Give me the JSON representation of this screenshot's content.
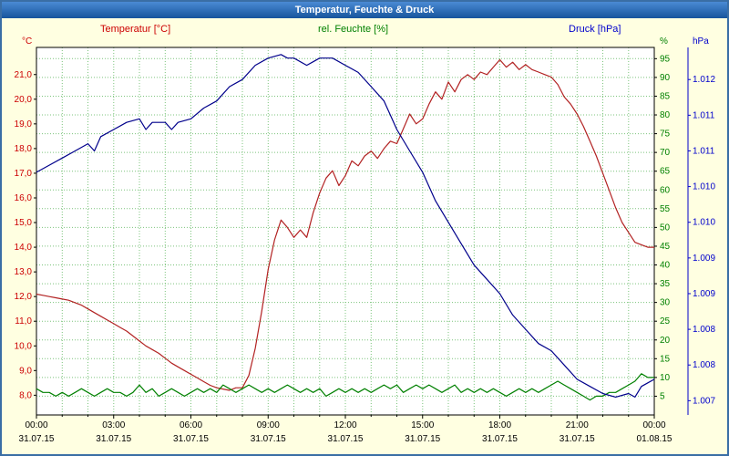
{
  "window": {
    "title": "Temperatur, Feuchte & Druck"
  },
  "colors": {
    "page_bg": "#ffffe1",
    "plot_bg": "#ffffff",
    "frame": "#3a6ea5",
    "title_bar_top": "#4a8ad4",
    "title_bar_bottom": "#17549c",
    "grid": "#7cc47c",
    "temp": "#cc0000",
    "temp_line": "#b22222",
    "hum": "#008000",
    "pres": "#0000cc",
    "pres_line": "#00008b"
  },
  "chart_data": {
    "type": "line",
    "title": "Temperatur, Feuchte & Druck",
    "grid": true,
    "legend_position": "top",
    "x_axis": {
      "min": 0,
      "max": 24,
      "grid_step": 1,
      "tick_step": 3,
      "tick_labels": [
        "00:00",
        "03:00",
        "06:00",
        "09:00",
        "12:00",
        "15:00",
        "18:00",
        "21:00",
        "00:00"
      ],
      "date_labels": [
        "31.07.15",
        "31.07.15",
        "31.07.15",
        "31.07.15",
        "31.07.15",
        "31.07.15",
        "31.07.15",
        "31.07.15",
        "01.08.15"
      ]
    },
    "axes": {
      "temp": {
        "label": "Temperatur [°C]",
        "unit": "°C",
        "side": "left",
        "min": 7.2,
        "max": 22.1,
        "ticks": [
          8,
          9,
          10,
          11,
          12,
          13,
          14,
          15,
          16,
          17,
          18,
          19,
          20,
          21
        ],
        "tick_labels": [
          "8,0",
          "9,0",
          "10,0",
          "11,0",
          "12,0",
          "13,0",
          "14,0",
          "15,0",
          "16,0",
          "17,0",
          "18,0",
          "19,0",
          "20,0",
          "21,0"
        ]
      },
      "hum": {
        "label": "rel. Feuchte [%]",
        "unit": "%",
        "side": "right",
        "min": 0,
        "max": 98,
        "ticks": [
          5,
          10,
          15,
          20,
          25,
          30,
          35,
          40,
          45,
          50,
          55,
          60,
          65,
          70,
          75,
          80,
          85,
          90,
          95
        ],
        "tick_labels": [
          "5",
          "10",
          "15",
          "20",
          "25",
          "30",
          "35",
          "40",
          "45",
          "50",
          "55",
          "60",
          "65",
          "70",
          "75",
          "80",
          "85",
          "90",
          "95"
        ]
      },
      "pres": {
        "label": "Druck [hPa]",
        "unit": "hPa",
        "side": "right2",
        "min": 1.0073,
        "max": 1.01245,
        "ticks": [
          1.0075,
          1.008,
          1.0085,
          1.009,
          1.0095,
          1.01,
          1.0105,
          1.011,
          1.0115,
          1.012
        ],
        "tick_labels": [
          "1.007",
          "1.008",
          "1.008",
          "1.009",
          "1.009",
          "1.010",
          "1.010",
          "1.011",
          "1.011",
          "1.012"
        ]
      }
    },
    "series": [
      {
        "name": "Temperatur",
        "axis": "temp",
        "color": "#b22222",
        "points": [
          [
            0,
            12.1
          ],
          [
            0.25,
            12.05
          ],
          [
            0.5,
            12.0
          ],
          [
            0.75,
            11.95
          ],
          [
            1,
            11.9
          ],
          [
            1.25,
            11.85
          ],
          [
            1.5,
            11.75
          ],
          [
            1.75,
            11.65
          ],
          [
            2,
            11.5
          ],
          [
            2.25,
            11.35
          ],
          [
            2.5,
            11.2
          ],
          [
            2.75,
            11.05
          ],
          [
            3,
            10.9
          ],
          [
            3.25,
            10.75
          ],
          [
            3.5,
            10.6
          ],
          [
            3.75,
            10.4
          ],
          [
            4,
            10.2
          ],
          [
            4.25,
            10.0
          ],
          [
            4.5,
            9.85
          ],
          [
            4.75,
            9.7
          ],
          [
            5,
            9.5
          ],
          [
            5.25,
            9.3
          ],
          [
            5.5,
            9.15
          ],
          [
            5.75,
            9.0
          ],
          [
            6,
            8.85
          ],
          [
            6.25,
            8.7
          ],
          [
            6.5,
            8.55
          ],
          [
            6.75,
            8.4
          ],
          [
            7,
            8.3
          ],
          [
            7.25,
            8.25
          ],
          [
            7.5,
            8.2
          ],
          [
            7.75,
            8.3
          ],
          [
            8,
            8.3
          ],
          [
            8.25,
            8.8
          ],
          [
            8.5,
            9.9
          ],
          [
            8.75,
            11.4
          ],
          [
            9,
            13.1
          ],
          [
            9.25,
            14.3
          ],
          [
            9.5,
            15.1
          ],
          [
            9.75,
            14.8
          ],
          [
            10,
            14.4
          ],
          [
            10.25,
            14.7
          ],
          [
            10.5,
            14.4
          ],
          [
            10.75,
            15.4
          ],
          [
            11,
            16.2
          ],
          [
            11.25,
            16.8
          ],
          [
            11.5,
            17.1
          ],
          [
            11.75,
            16.5
          ],
          [
            12,
            16.9
          ],
          [
            12.25,
            17.5
          ],
          [
            12.5,
            17.3
          ],
          [
            12.75,
            17.7
          ],
          [
            13,
            17.9
          ],
          [
            13.25,
            17.6
          ],
          [
            13.5,
            18.0
          ],
          [
            13.75,
            18.3
          ],
          [
            14,
            18.2
          ],
          [
            14.25,
            18.8
          ],
          [
            14.5,
            19.4
          ],
          [
            14.75,
            19.0
          ],
          [
            15,
            19.2
          ],
          [
            15.25,
            19.8
          ],
          [
            15.5,
            20.3
          ],
          [
            15.75,
            20.0
          ],
          [
            16,
            20.7
          ],
          [
            16.25,
            20.3
          ],
          [
            16.5,
            20.8
          ],
          [
            16.75,
            21.0
          ],
          [
            17,
            20.8
          ],
          [
            17.25,
            21.1
          ],
          [
            17.5,
            21.0
          ],
          [
            17.75,
            21.3
          ],
          [
            18,
            21.6
          ],
          [
            18.25,
            21.3
          ],
          [
            18.5,
            21.5
          ],
          [
            18.75,
            21.2
          ],
          [
            19,
            21.4
          ],
          [
            19.25,
            21.2
          ],
          [
            19.5,
            21.1
          ],
          [
            19.75,
            21.0
          ],
          [
            20,
            20.9
          ],
          [
            20.25,
            20.6
          ],
          [
            20.5,
            20.1
          ],
          [
            20.75,
            19.8
          ],
          [
            21,
            19.4
          ],
          [
            21.25,
            18.9
          ],
          [
            21.5,
            18.3
          ],
          [
            21.75,
            17.7
          ],
          [
            22,
            17.0
          ],
          [
            22.25,
            16.3
          ],
          [
            22.5,
            15.6
          ],
          [
            22.75,
            15.0
          ],
          [
            23,
            14.6
          ],
          [
            23.25,
            14.2
          ],
          [
            23.5,
            14.1
          ],
          [
            23.75,
            14.0
          ],
          [
            24,
            14.0
          ]
        ]
      },
      {
        "name": "rel. Feuchte",
        "axis": "hum",
        "color": "#008000",
        "points": [
          [
            0,
            7
          ],
          [
            0.25,
            6
          ],
          [
            0.5,
            6
          ],
          [
            0.75,
            5
          ],
          [
            1,
            6
          ],
          [
            1.25,
            5
          ],
          [
            1.5,
            6
          ],
          [
            1.75,
            7
          ],
          [
            2,
            6
          ],
          [
            2.25,
            5
          ],
          [
            2.5,
            6
          ],
          [
            2.75,
            7
          ],
          [
            3,
            6
          ],
          [
            3.25,
            6
          ],
          [
            3.5,
            5
          ],
          [
            3.75,
            6
          ],
          [
            4,
            8
          ],
          [
            4.25,
            6
          ],
          [
            4.5,
            7
          ],
          [
            4.75,
            5
          ],
          [
            5,
            6
          ],
          [
            5.25,
            7
          ],
          [
            5.5,
            6
          ],
          [
            5.75,
            5
          ],
          [
            6,
            6
          ],
          [
            6.25,
            7
          ],
          [
            6.5,
            6
          ],
          [
            6.75,
            7
          ],
          [
            7,
            6
          ],
          [
            7.25,
            8
          ],
          [
            7.5,
            7
          ],
          [
            7.75,
            6
          ],
          [
            8,
            7
          ],
          [
            8.25,
            8
          ],
          [
            8.5,
            7
          ],
          [
            8.75,
            6
          ],
          [
            9,
            7
          ],
          [
            9.25,
            6
          ],
          [
            9.5,
            7
          ],
          [
            9.75,
            8
          ],
          [
            10,
            7
          ],
          [
            10.25,
            6
          ],
          [
            10.5,
            7
          ],
          [
            10.75,
            6
          ],
          [
            11,
            7
          ],
          [
            11.25,
            5
          ],
          [
            11.5,
            6
          ],
          [
            11.75,
            7
          ],
          [
            12,
            6
          ],
          [
            12.25,
            7
          ],
          [
            12.5,
            6
          ],
          [
            12.75,
            7
          ],
          [
            13,
            6
          ],
          [
            13.25,
            7
          ],
          [
            13.5,
            8
          ],
          [
            13.75,
            7
          ],
          [
            14,
            8
          ],
          [
            14.25,
            6
          ],
          [
            14.5,
            7
          ],
          [
            14.75,
            8
          ],
          [
            15,
            7
          ],
          [
            15.25,
            8
          ],
          [
            15.5,
            7
          ],
          [
            15.75,
            6
          ],
          [
            16,
            7
          ],
          [
            16.25,
            8
          ],
          [
            16.5,
            6
          ],
          [
            16.75,
            7
          ],
          [
            17,
            6
          ],
          [
            17.25,
            7
          ],
          [
            17.5,
            6
          ],
          [
            17.75,
            7
          ],
          [
            18,
            6
          ],
          [
            18.25,
            5
          ],
          [
            18.5,
            6
          ],
          [
            18.75,
            7
          ],
          [
            19,
            6
          ],
          [
            19.25,
            7
          ],
          [
            19.5,
            6
          ],
          [
            19.75,
            7
          ],
          [
            20,
            8
          ],
          [
            20.25,
            9
          ],
          [
            20.5,
            8
          ],
          [
            20.75,
            7
          ],
          [
            21,
            6
          ],
          [
            21.25,
            5
          ],
          [
            21.5,
            4
          ],
          [
            21.75,
            5
          ],
          [
            22,
            5
          ],
          [
            22.25,
            6
          ],
          [
            22.5,
            6
          ],
          [
            22.75,
            7
          ],
          [
            23,
            8
          ],
          [
            23.25,
            9
          ],
          [
            23.5,
            11
          ],
          [
            23.75,
            10
          ],
          [
            24,
            10
          ]
        ]
      },
      {
        "name": "Druck",
        "axis": "pres",
        "color": "#00008b",
        "points": [
          [
            0,
            1.0107
          ],
          [
            0.5,
            1.0108
          ],
          [
            1,
            1.0109
          ],
          [
            1.5,
            1.011
          ],
          [
            2,
            1.0111
          ],
          [
            2.25,
            1.011
          ],
          [
            2.5,
            1.0112
          ],
          [
            3,
            1.0113
          ],
          [
            3.5,
            1.0114
          ],
          [
            4,
            1.01145
          ],
          [
            4.25,
            1.0113
          ],
          [
            4.5,
            1.0114
          ],
          [
            5,
            1.0114
          ],
          [
            5.25,
            1.0113
          ],
          [
            5.5,
            1.0114
          ],
          [
            6,
            1.01145
          ],
          [
            6.5,
            1.0116
          ],
          [
            7,
            1.0117
          ],
          [
            7.5,
            1.0119
          ],
          [
            8,
            1.012
          ],
          [
            8.5,
            1.0122
          ],
          [
            9,
            1.0123
          ],
          [
            9.5,
            1.01235
          ],
          [
            9.75,
            1.0123
          ],
          [
            10,
            1.0123
          ],
          [
            10.5,
            1.0122
          ],
          [
            10.75,
            1.01225
          ],
          [
            11,
            1.0123
          ],
          [
            11.5,
            1.0123
          ],
          [
            12,
            1.0122
          ],
          [
            12.5,
            1.0121
          ],
          [
            13,
            1.0119
          ],
          [
            13.5,
            1.0117
          ],
          [
            14,
            1.0113
          ],
          [
            14.5,
            1.011
          ],
          [
            15,
            1.0107
          ],
          [
            15.5,
            1.0103
          ],
          [
            16,
            1.01
          ],
          [
            16.5,
            1.0097
          ],
          [
            17,
            1.0094
          ],
          [
            17.5,
            1.0092
          ],
          [
            18,
            1.009
          ],
          [
            18.5,
            1.0087
          ],
          [
            19,
            1.0085
          ],
          [
            19.5,
            1.0083
          ],
          [
            20,
            1.0082
          ],
          [
            20.5,
            1.008
          ],
          [
            21,
            1.0078
          ],
          [
            21.5,
            1.0077
          ],
          [
            22,
            1.0076
          ],
          [
            22.5,
            1.00755
          ],
          [
            23,
            1.0076
          ],
          [
            23.25,
            1.00755
          ],
          [
            23.5,
            1.0077
          ],
          [
            23.75,
            1.00775
          ],
          [
            24,
            1.0078
          ]
        ]
      }
    ]
  }
}
